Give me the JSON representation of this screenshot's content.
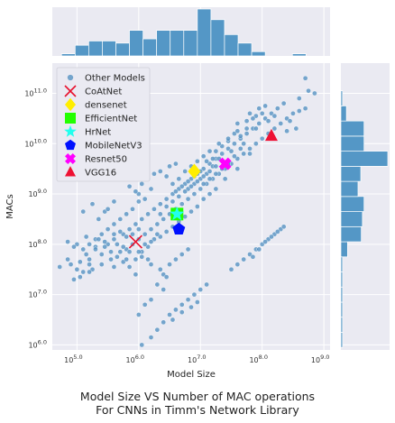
{
  "chart_data": {
    "type": "scatter",
    "xlabel": "Model Size",
    "ylabel": "MACs",
    "x_log_range": [
      4.6,
      9.1
    ],
    "y_log_range": [
      5.9,
      11.6
    ],
    "x_ticks": [
      {
        "exp": 5,
        "label": "10",
        "sup": "5.0"
      },
      {
        "exp": 6,
        "label": "10",
        "sup": "6.0"
      },
      {
        "exp": 7,
        "label": "10",
        "sup": "7.0"
      },
      {
        "exp": 8,
        "label": "10",
        "sup": "8.0"
      },
      {
        "exp": 9,
        "label": "10",
        "sup": "9.0"
      }
    ],
    "y_ticks": [
      {
        "exp": 6,
        "label": "10",
        "sup": "6.0"
      },
      {
        "exp": 7,
        "label": "10",
        "sup": "7.0"
      },
      {
        "exp": 8,
        "label": "10",
        "sup": "8.0"
      },
      {
        "exp": 9,
        "label": "10",
        "sup": "9.0"
      },
      {
        "exp": 10,
        "label": "10",
        "sup": "10.0"
      },
      {
        "exp": 11,
        "label": "10",
        "sup": "11.0"
      }
    ],
    "grid": true,
    "legend_position": "top-left",
    "colors": {
      "other": "#4c8cbf",
      "CoAtNet": "#e8112d",
      "densenet": "#ffee00",
      "EfficientNet": "#22ff00",
      "HrNet": "#22ffee",
      "MobileNetV3": "#0011ff",
      "Resnet50": "#ff00ff",
      "VGG16": "#ee1133",
      "hist": "#5497c6",
      "plot_bg": "#eaeaf2"
    },
    "legend": [
      {
        "name": "Other Models",
        "marker": "dot"
      },
      {
        "name": "CoAtNet",
        "marker": "x"
      },
      {
        "name": "densenet",
        "marker": "diamond"
      },
      {
        "name": "EfficientNet",
        "marker": "square"
      },
      {
        "name": "HrNet",
        "marker": "star"
      },
      {
        "name": "MobileNetV3",
        "marker": "pentagon"
      },
      {
        "name": "Resnet50",
        "marker": "plusx"
      },
      {
        "name": "VGG16",
        "marker": "triangle"
      }
    ],
    "highlights": [
      {
        "name": "CoAtNet",
        "x": 5.95,
        "y": 8.05,
        "marker": "x"
      },
      {
        "name": "densenet",
        "x": 6.9,
        "y": 9.45,
        "marker": "diamond"
      },
      {
        "name": "EfficientNet",
        "x": 6.62,
        "y": 8.6,
        "marker": "square"
      },
      {
        "name": "HrNet",
        "x": 6.62,
        "y": 8.6,
        "marker": "star"
      },
      {
        "name": "MobileNetV3",
        "x": 6.65,
        "y": 8.3,
        "marker": "pentagon"
      },
      {
        "name": "Resnet50",
        "x": 7.4,
        "y": 9.6,
        "marker": "plusx"
      },
      {
        "name": "VGG16",
        "x": 8.15,
        "y": 10.15,
        "marker": "triangle"
      }
    ],
    "other_models": [
      [
        4.72,
        7.55
      ],
      [
        4.85,
        7.7
      ],
      [
        4.95,
        7.3
      ],
      [
        5.05,
        7.65
      ],
      [
        5.1,
        7.45
      ],
      [
        5.15,
        7.8
      ],
      [
        5.2,
        7.6
      ],
      [
        5.3,
        7.95
      ],
      [
        5.25,
        7.5
      ],
      [
        5.4,
        7.8
      ],
      [
        5.5,
        8.0
      ],
      [
        5.55,
        7.7
      ],
      [
        5.6,
        8.1
      ],
      [
        5.7,
        7.85
      ],
      [
        5.75,
        8.2
      ],
      [
        5.8,
        7.9
      ],
      [
        5.85,
        8.3
      ],
      [
        5.9,
        8.0
      ],
      [
        5.95,
        8.4
      ],
      [
        6.0,
        8.1
      ],
      [
        6.05,
        8.5
      ],
      [
        6.1,
        8.2
      ],
      [
        6.15,
        8.6
      ],
      [
        6.2,
        8.3
      ],
      [
        6.25,
        8.7
      ],
      [
        6.3,
        8.4
      ],
      [
        6.35,
        8.8
      ],
      [
        6.4,
        8.5
      ],
      [
        6.45,
        8.9
      ],
      [
        6.5,
        8.6
      ],
      [
        6.55,
        9.0
      ],
      [
        6.6,
        8.7
      ],
      [
        6.65,
        9.1
      ],
      [
        6.7,
        8.8
      ],
      [
        6.75,
        9.2
      ],
      [
        6.8,
        8.9
      ],
      [
        6.85,
        9.3
      ],
      [
        6.9,
        9.0
      ],
      [
        6.95,
        9.4
      ],
      [
        7.0,
        9.1
      ],
      [
        7.05,
        9.5
      ],
      [
        7.1,
        9.2
      ],
      [
        7.15,
        9.6
      ],
      [
        7.2,
        9.3
      ],
      [
        7.25,
        9.7
      ],
      [
        7.3,
        9.4
      ],
      [
        7.35,
        9.8
      ],
      [
        7.4,
        9.5
      ],
      [
        7.45,
        9.9
      ],
      [
        7.5,
        9.6
      ],
      [
        7.55,
        10.0
      ],
      [
        7.6,
        9.7
      ],
      [
        7.65,
        10.1
      ],
      [
        7.7,
        9.8
      ],
      [
        7.75,
        10.2
      ],
      [
        7.8,
        9.9
      ],
      [
        7.85,
        10.3
      ],
      [
        7.9,
        10.0
      ],
      [
        7.95,
        10.4
      ],
      [
        8.0,
        10.1
      ],
      [
        8.05,
        10.5
      ],
      [
        8.1,
        10.2
      ],
      [
        8.15,
        10.6
      ],
      [
        8.2,
        10.3
      ],
      [
        8.25,
        10.7
      ],
      [
        8.3,
        10.4
      ],
      [
        8.35,
        10.8
      ],
      [
        8.4,
        10.5
      ],
      [
        7.6,
        10.4
      ],
      [
        7.8,
        10.6
      ],
      [
        7.9,
        10.3
      ],
      [
        8.0,
        10.6
      ],
      [
        7.7,
        10.0
      ],
      [
        7.5,
        9.85
      ],
      [
        7.3,
        9.7
      ],
      [
        7.2,
        9.55
      ],
      [
        7.1,
        9.4
      ],
      [
        7.0,
        9.3
      ],
      [
        6.9,
        9.2
      ],
      [
        6.8,
        9.1
      ],
      [
        7.4,
        9.3
      ],
      [
        7.6,
        9.5
      ],
      [
        7.8,
        9.8
      ],
      [
        7.65,
        9.9
      ],
      [
        7.55,
        9.75
      ],
      [
        7.45,
        9.6
      ],
      [
        7.35,
        9.5
      ],
      [
        7.25,
        9.4
      ],
      [
        7.15,
        9.3
      ],
      [
        7.05,
        9.2
      ],
      [
        6.2,
        9.1
      ],
      [
        6.1,
        8.9
      ],
      [
        6.0,
        8.85
      ],
      [
        5.9,
        8.7
      ],
      [
        5.8,
        8.6
      ],
      [
        5.7,
        8.5
      ],
      [
        5.6,
        8.4
      ],
      [
        5.5,
        8.3
      ],
      [
        5.4,
        8.2
      ],
      [
        5.3,
        8.1
      ],
      [
        5.2,
        8.0
      ],
      [
        5.1,
        7.9
      ],
      [
        5.0,
        8.0
      ],
      [
        5.15,
        8.15
      ],
      [
        5.35,
        8.5
      ],
      [
        5.45,
        8.65
      ],
      [
        5.1,
        8.65
      ],
      [
        5.25,
        8.8
      ],
      [
        6.0,
        9.0
      ],
      [
        6.05,
        9.2
      ],
      [
        5.95,
        9.05
      ],
      [
        6.15,
        9.3
      ],
      [
        6.25,
        9.4
      ],
      [
        6.35,
        9.45
      ],
      [
        6.5,
        9.55
      ],
      [
        6.6,
        9.6
      ],
      [
        6.45,
        9.35
      ],
      [
        5.85,
        9.15
      ],
      [
        5.5,
        8.7
      ],
      [
        5.6,
        8.85
      ],
      [
        5.35,
        8.1
      ],
      [
        5.45,
        7.95
      ],
      [
        5.55,
        7.85
      ],
      [
        5.65,
        7.75
      ],
      [
        5.75,
        7.65
      ],
      [
        5.85,
        7.55
      ],
      [
        5.95,
        7.4
      ],
      [
        6.05,
        7.75
      ],
      [
        6.15,
        7.95
      ],
      [
        6.25,
        8.1
      ],
      [
        6.35,
        8.15
      ],
      [
        6.45,
        8.25
      ],
      [
        6.55,
        8.35
      ],
      [
        6.65,
        8.45
      ],
      [
        6.75,
        8.55
      ],
      [
        6.85,
        8.65
      ],
      [
        6.95,
        8.75
      ],
      [
        7.05,
        8.9
      ],
      [
        7.15,
        9.0
      ],
      [
        7.25,
        9.1
      ],
      [
        6.3,
        7.2
      ],
      [
        6.4,
        7.4
      ],
      [
        6.5,
        7.6
      ],
      [
        6.6,
        7.7
      ],
      [
        6.7,
        7.8
      ],
      [
        6.8,
        7.9
      ],
      [
        6.4,
        7.1
      ],
      [
        6.2,
        6.9
      ],
      [
        6.1,
        6.8
      ],
      [
        6.0,
        6.6
      ],
      [
        6.15,
        7.7
      ],
      [
        6.05,
        7.85
      ],
      [
        5.85,
        7.85
      ],
      [
        5.65,
        8.0
      ],
      [
        5.45,
        8.05
      ],
      [
        5.3,
        7.9
      ],
      [
        5.2,
        7.7
      ],
      [
        5.05,
        7.35
      ],
      [
        4.95,
        7.95
      ],
      [
        4.85,
        8.05
      ],
      [
        6.3,
        6.3
      ],
      [
        6.4,
        6.45
      ],
      [
        6.5,
        6.6
      ],
      [
        6.6,
        6.7
      ],
      [
        6.7,
        6.8
      ],
      [
        6.8,
        6.9
      ],
      [
        6.9,
        7.0
      ],
      [
        7.0,
        7.1
      ],
      [
        7.1,
        7.2
      ],
      [
        6.55,
        6.5
      ],
      [
        6.7,
        6.65
      ],
      [
        6.85,
        6.75
      ],
      [
        6.95,
        6.85
      ],
      [
        6.2,
        6.15
      ],
      [
        6.05,
        6.0
      ],
      [
        7.6,
        7.6
      ],
      [
        7.7,
        7.7
      ],
      [
        7.8,
        7.8
      ],
      [
        7.9,
        7.9
      ],
      [
        8.0,
        8.0
      ],
      [
        8.1,
        8.1
      ],
      [
        8.2,
        8.2
      ],
      [
        8.3,
        8.3
      ],
      [
        7.85,
        7.75
      ],
      [
        7.95,
        7.9
      ],
      [
        8.05,
        8.05
      ],
      [
        8.15,
        8.15
      ],
      [
        8.25,
        8.25
      ],
      [
        8.35,
        8.35
      ],
      [
        7.5,
        7.5
      ],
      [
        8.7,
        11.3
      ],
      [
        8.75,
        11.05
      ],
      [
        8.85,
        11.0
      ],
      [
        8.7,
        10.7
      ],
      [
        8.6,
        10.65
      ],
      [
        8.5,
        10.6
      ],
      [
        8.55,
        10.3
      ],
      [
        8.45,
        10.45
      ],
      [
        8.6,
        10.9
      ],
      [
        8.4,
        10.25
      ],
      [
        7.9,
        10.55
      ],
      [
        7.75,
        10.3
      ],
      [
        7.65,
        10.15
      ],
      [
        7.55,
        10.2
      ],
      [
        7.45,
        10.05
      ],
      [
        7.35,
        9.95
      ],
      [
        7.25,
        9.85
      ],
      [
        7.2,
        9.7
      ],
      [
        7.1,
        9.65
      ],
      [
        7.0,
        9.45
      ],
      [
        6.9,
        9.35
      ],
      [
        6.8,
        9.25
      ],
      [
        6.7,
        9.15
      ],
      [
        6.6,
        9.05
      ],
      [
        6.55,
        9.2
      ],
      [
        6.65,
        9.3
      ],
      [
        6.75,
        9.45
      ],
      [
        6.85,
        9.55
      ],
      [
        6.95,
        9.65
      ],
      [
        7.05,
        9.75
      ],
      [
        7.15,
        9.85
      ],
      [
        7.3,
        10.0
      ],
      [
        7.45,
        10.1
      ],
      [
        7.6,
        10.25
      ],
      [
        7.75,
        10.45
      ],
      [
        7.85,
        10.5
      ],
      [
        7.95,
        10.7
      ],
      [
        8.05,
        10.75
      ],
      [
        8.1,
        10.45
      ],
      [
        8.2,
        10.55
      ],
      [
        6.35,
        8.6
      ],
      [
        6.45,
        8.75
      ],
      [
        6.55,
        8.85
      ],
      [
        6.65,
        8.95
      ],
      [
        6.75,
        9.05
      ],
      [
        6.85,
        9.15
      ],
      [
        6.95,
        9.25
      ],
      [
        7.05,
        9.35
      ],
      [
        7.15,
        9.45
      ],
      [
        7.25,
        9.55
      ],
      [
        6.0,
        8.3
      ],
      [
        5.9,
        8.2
      ],
      [
        5.8,
        8.15
      ],
      [
        5.7,
        8.25
      ],
      [
        5.6,
        8.2
      ],
      [
        6.1,
        8.0
      ],
      [
        6.2,
        8.05
      ],
      [
        6.3,
        8.2
      ],
      [
        5.95,
        7.7
      ],
      [
        5.75,
        7.95
      ],
      [
        4.9,
        7.6
      ],
      [
        5.0,
        7.5
      ],
      [
        5.2,
        7.45
      ],
      [
        5.4,
        7.6
      ],
      [
        5.6,
        7.55
      ],
      [
        5.8,
        7.7
      ],
      [
        6.0,
        7.85
      ],
      [
        6.2,
        7.6
      ],
      [
        6.35,
        7.5
      ],
      [
        6.45,
        7.35
      ]
    ],
    "top_histogram": {
      "bins": [
        [
          4.75,
          4.97
        ],
        [
          4.97,
          5.19
        ],
        [
          5.19,
          5.41
        ],
        [
          5.41,
          5.63
        ],
        [
          5.63,
          5.85
        ],
        [
          5.85,
          6.07
        ],
        [
          6.07,
          6.29
        ],
        [
          6.29,
          6.51
        ],
        [
          6.51,
          6.73
        ],
        [
          6.73,
          6.95
        ],
        [
          6.95,
          7.17
        ],
        [
          7.17,
          7.39
        ],
        [
          7.39,
          7.61
        ],
        [
          7.61,
          7.83
        ],
        [
          7.83,
          8.05
        ],
        [
          8.05,
          8.27
        ],
        [
          8.27,
          8.49
        ],
        [
          8.49,
          8.71
        ],
        [
          8.71,
          8.93
        ]
      ],
      "counts": [
        1,
        5,
        7,
        7,
        6,
        12,
        8,
        12,
        12,
        12,
        22,
        17,
        10,
        6,
        2,
        0,
        0,
        1,
        0
      ]
    },
    "right_histogram": {
      "bins": [
        [
          5.95,
          6.25
        ],
        [
          6.25,
          6.55
        ],
        [
          6.55,
          6.85
        ],
        [
          6.85,
          7.15
        ],
        [
          7.15,
          7.45
        ],
        [
          7.45,
          7.75
        ],
        [
          7.75,
          8.05
        ],
        [
          8.05,
          8.35
        ],
        [
          8.35,
          8.65
        ],
        [
          8.65,
          8.95
        ],
        [
          8.95,
          9.25
        ],
        [
          9.25,
          9.55
        ],
        [
          9.55,
          9.85
        ],
        [
          9.85,
          10.15
        ],
        [
          10.15,
          10.45
        ],
        [
          10.45,
          10.75
        ],
        [
          10.75,
          11.05
        ]
      ],
      "counts": [
        0.3,
        0.3,
        0.3,
        0.3,
        0.3,
        0.3,
        1.2,
        3.7,
        3.9,
        4.2,
        3.1,
        3.6,
        8.5,
        4.2,
        4.2,
        1.0,
        0.3
      ]
    }
  },
  "title": {
    "line1": "Model Size VS Number of MAC operations",
    "line2": "For CNNs in Timm's Network Library"
  }
}
